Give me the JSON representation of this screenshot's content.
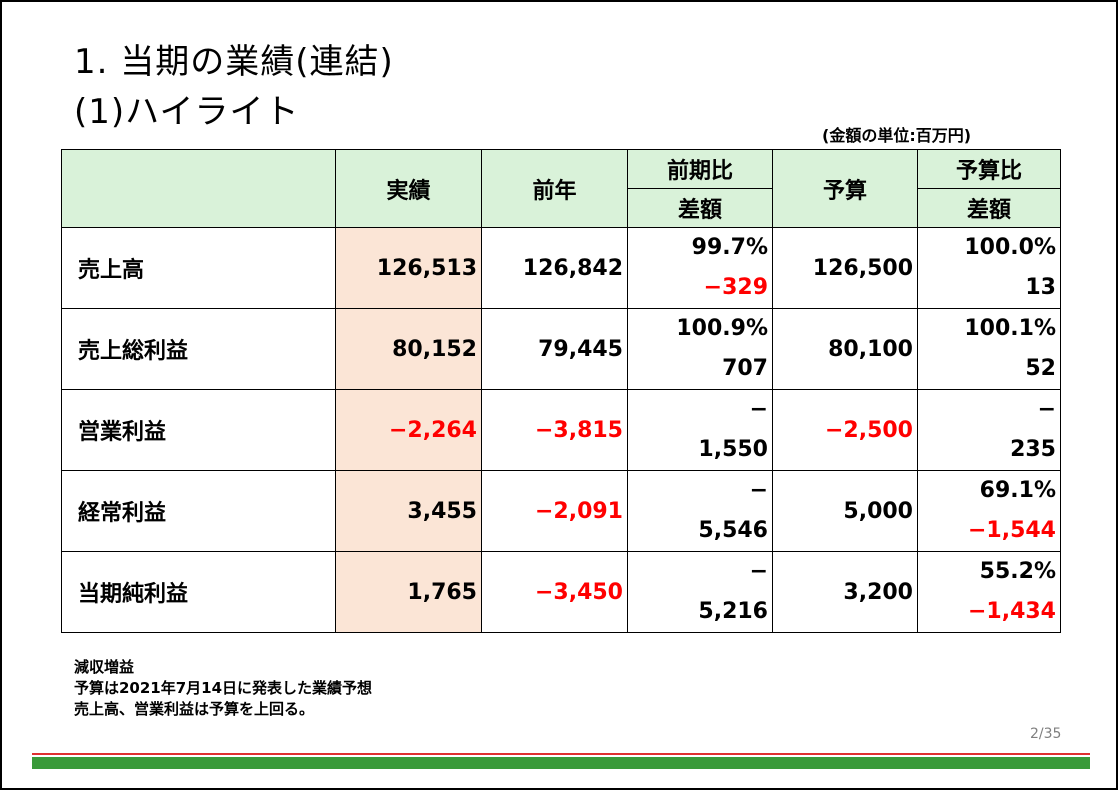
{
  "title": {
    "line1": "1. 当期の業績(連結)",
    "line2": "(1)ハイライト"
  },
  "unit_note": "(金額の単位:百万円)",
  "table": {
    "headers": {
      "actual": "実績",
      "prev": "前年",
      "yoy_top": "前期比",
      "yoy_bottom": "差額",
      "budget": "予算",
      "vsb_top": "予算比",
      "vsb_bottom": "差額"
    },
    "rows": [
      {
        "label": "売上高",
        "actual": "126,513",
        "prev": "126,842",
        "yoy_pct": "99.7%",
        "yoy_diff": "−329",
        "budget": "126,500",
        "vsb_pct": "100.0%",
        "vsb_diff": "13"
      },
      {
        "label": "売上総利益",
        "actual": "80,152",
        "prev": "79,445",
        "yoy_pct": "100.9%",
        "yoy_diff": "707",
        "budget": "80,100",
        "vsb_pct": "100.1%",
        "vsb_diff": "52"
      },
      {
        "label": "営業利益",
        "actual": "−2,264",
        "prev": "−3,815",
        "yoy_pct": "−",
        "yoy_diff": "1,550",
        "budget": "−2,500",
        "vsb_pct": "−",
        "vsb_diff": "235"
      },
      {
        "label": "経常利益",
        "actual": "3,455",
        "prev": "−2,091",
        "yoy_pct": "−",
        "yoy_diff": "5,546",
        "budget": "5,000",
        "vsb_pct": "69.1%",
        "vsb_diff": "−1,544"
      },
      {
        "label": "当期純利益",
        "actual": "1,765",
        "prev": "−3,450",
        "yoy_pct": "−",
        "yoy_diff": "5,216",
        "budget": "3,200",
        "vsb_pct": "55.2%",
        "vsb_diff": "−1,434"
      }
    ]
  },
  "notes": [
    "減収増益",
    "予算は2021年7月14日に発表した業績予想",
    "売上高、営業利益は予算を上回る。"
  ],
  "page_number": "2/35",
  "colors": {
    "header_bg": "#d9f2d9",
    "actual_bg": "#fbe5d6",
    "negative": "#ff0000",
    "footer_green": "#3a9a3a",
    "footer_red": "#e03030"
  }
}
